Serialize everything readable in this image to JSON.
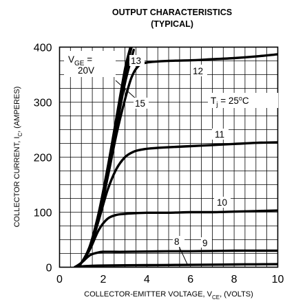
{
  "chart_data": {
    "type": "line",
    "title": "OUTPUT CHARACTERISTICS",
    "subtitle": "(TYPICAL)",
    "xlabel_parts": [
      "COLLECTOR-EMITTER VOLTAGE, V",
      "CE",
      ", (VOLTS)"
    ],
    "ylabel_parts": [
      "COLLECTOR CURRENT, I",
      "C",
      ", (AMPERES)"
    ],
    "xlim": [
      0,
      10
    ],
    "ylim": [
      0,
      400
    ],
    "x_ticks": [
      0,
      2,
      4,
      6,
      8,
      10
    ],
    "y_ticks": [
      0,
      100,
      200,
      300,
      400
    ],
    "grid": true,
    "temperature_parts": [
      "T",
      "j",
      " = 25",
      "o",
      "C"
    ],
    "vge_label_parts": [
      "V",
      "GE",
      " ="
    ],
    "vge_value_label": "20V",
    "series": [
      {
        "name": "20V",
        "x": [
          0.7,
          1.0,
          1.4,
          1.8,
          2.2,
          2.6,
          3.0,
          3.25
        ],
        "y": [
          0,
          8,
          40,
          100,
          180,
          270,
          360,
          400
        ]
      },
      {
        "name": "15",
        "x": [
          0.7,
          1.0,
          1.4,
          1.8,
          2.2,
          2.6,
          3.0,
          3.3
        ],
        "y": [
          0,
          8,
          38,
          96,
          175,
          262,
          350,
          400
        ]
      },
      {
        "name": "13",
        "x": [
          0.7,
          1.0,
          1.4,
          1.8,
          2.2,
          2.6,
          3.0,
          3.4
        ],
        "y": [
          0,
          8,
          37,
          93,
          168,
          252,
          335,
          395
        ]
      },
      {
        "name": "12",
        "x": [
          0.7,
          1.0,
          1.4,
          1.8,
          2.2,
          2.6,
          3.0,
          3.3,
          3.6,
          4.0,
          5.0,
          6.0,
          7.0,
          8.0,
          9.0,
          10.0
        ],
        "y": [
          0,
          8,
          36,
          90,
          162,
          240,
          305,
          345,
          365,
          372,
          375,
          376,
          378,
          380,
          383,
          387
        ]
      },
      {
        "name": "11",
        "x": [
          0.7,
          1.0,
          1.4,
          1.8,
          2.2,
          2.6,
          3.0,
          3.4,
          3.8,
          4.2,
          5.0,
          6.0,
          7.0,
          8.0,
          9.0,
          10.0
        ],
        "y": [
          0,
          8,
          35,
          86,
          140,
          178,
          200,
          210,
          214,
          216,
          218,
          220,
          222,
          224,
          226,
          227
        ]
      },
      {
        "name": "10",
        "x": [
          0.7,
          1.0,
          1.4,
          1.8,
          2.2,
          2.6,
          3.0,
          3.4,
          4.0,
          5.0,
          6.0,
          7.0,
          8.0,
          9.0,
          10.0
        ],
        "y": [
          0,
          8,
          33,
          68,
          88,
          95,
          97,
          98,
          99,
          99,
          100,
          100,
          101,
          102,
          103
        ]
      },
      {
        "name": "9",
        "x": [
          0.7,
          1.0,
          1.4,
          1.8,
          2.0,
          2.4,
          3.0,
          4.0,
          5.0,
          6.0,
          7.0,
          8.0,
          9.0,
          10.0
        ],
        "y": [
          0,
          8,
          22,
          27,
          28,
          28,
          28,
          28.5,
          29,
          29,
          29.5,
          30,
          30,
          30
        ]
      },
      {
        "name": "8",
        "x": [
          0.7,
          1.0,
          1.5,
          2.0,
          3.0,
          4.0,
          5.0,
          6.0,
          7.0,
          8.0,
          9.0,
          10.0
        ],
        "y": [
          0,
          1.5,
          2.5,
          3,
          3.5,
          3.8,
          4,
          4.3,
          4.6,
          5,
          5.3,
          5.5
        ]
      }
    ],
    "curve_labels": [
      "13",
      "12",
      "15",
      "11",
      "10",
      "9",
      "8"
    ]
  }
}
